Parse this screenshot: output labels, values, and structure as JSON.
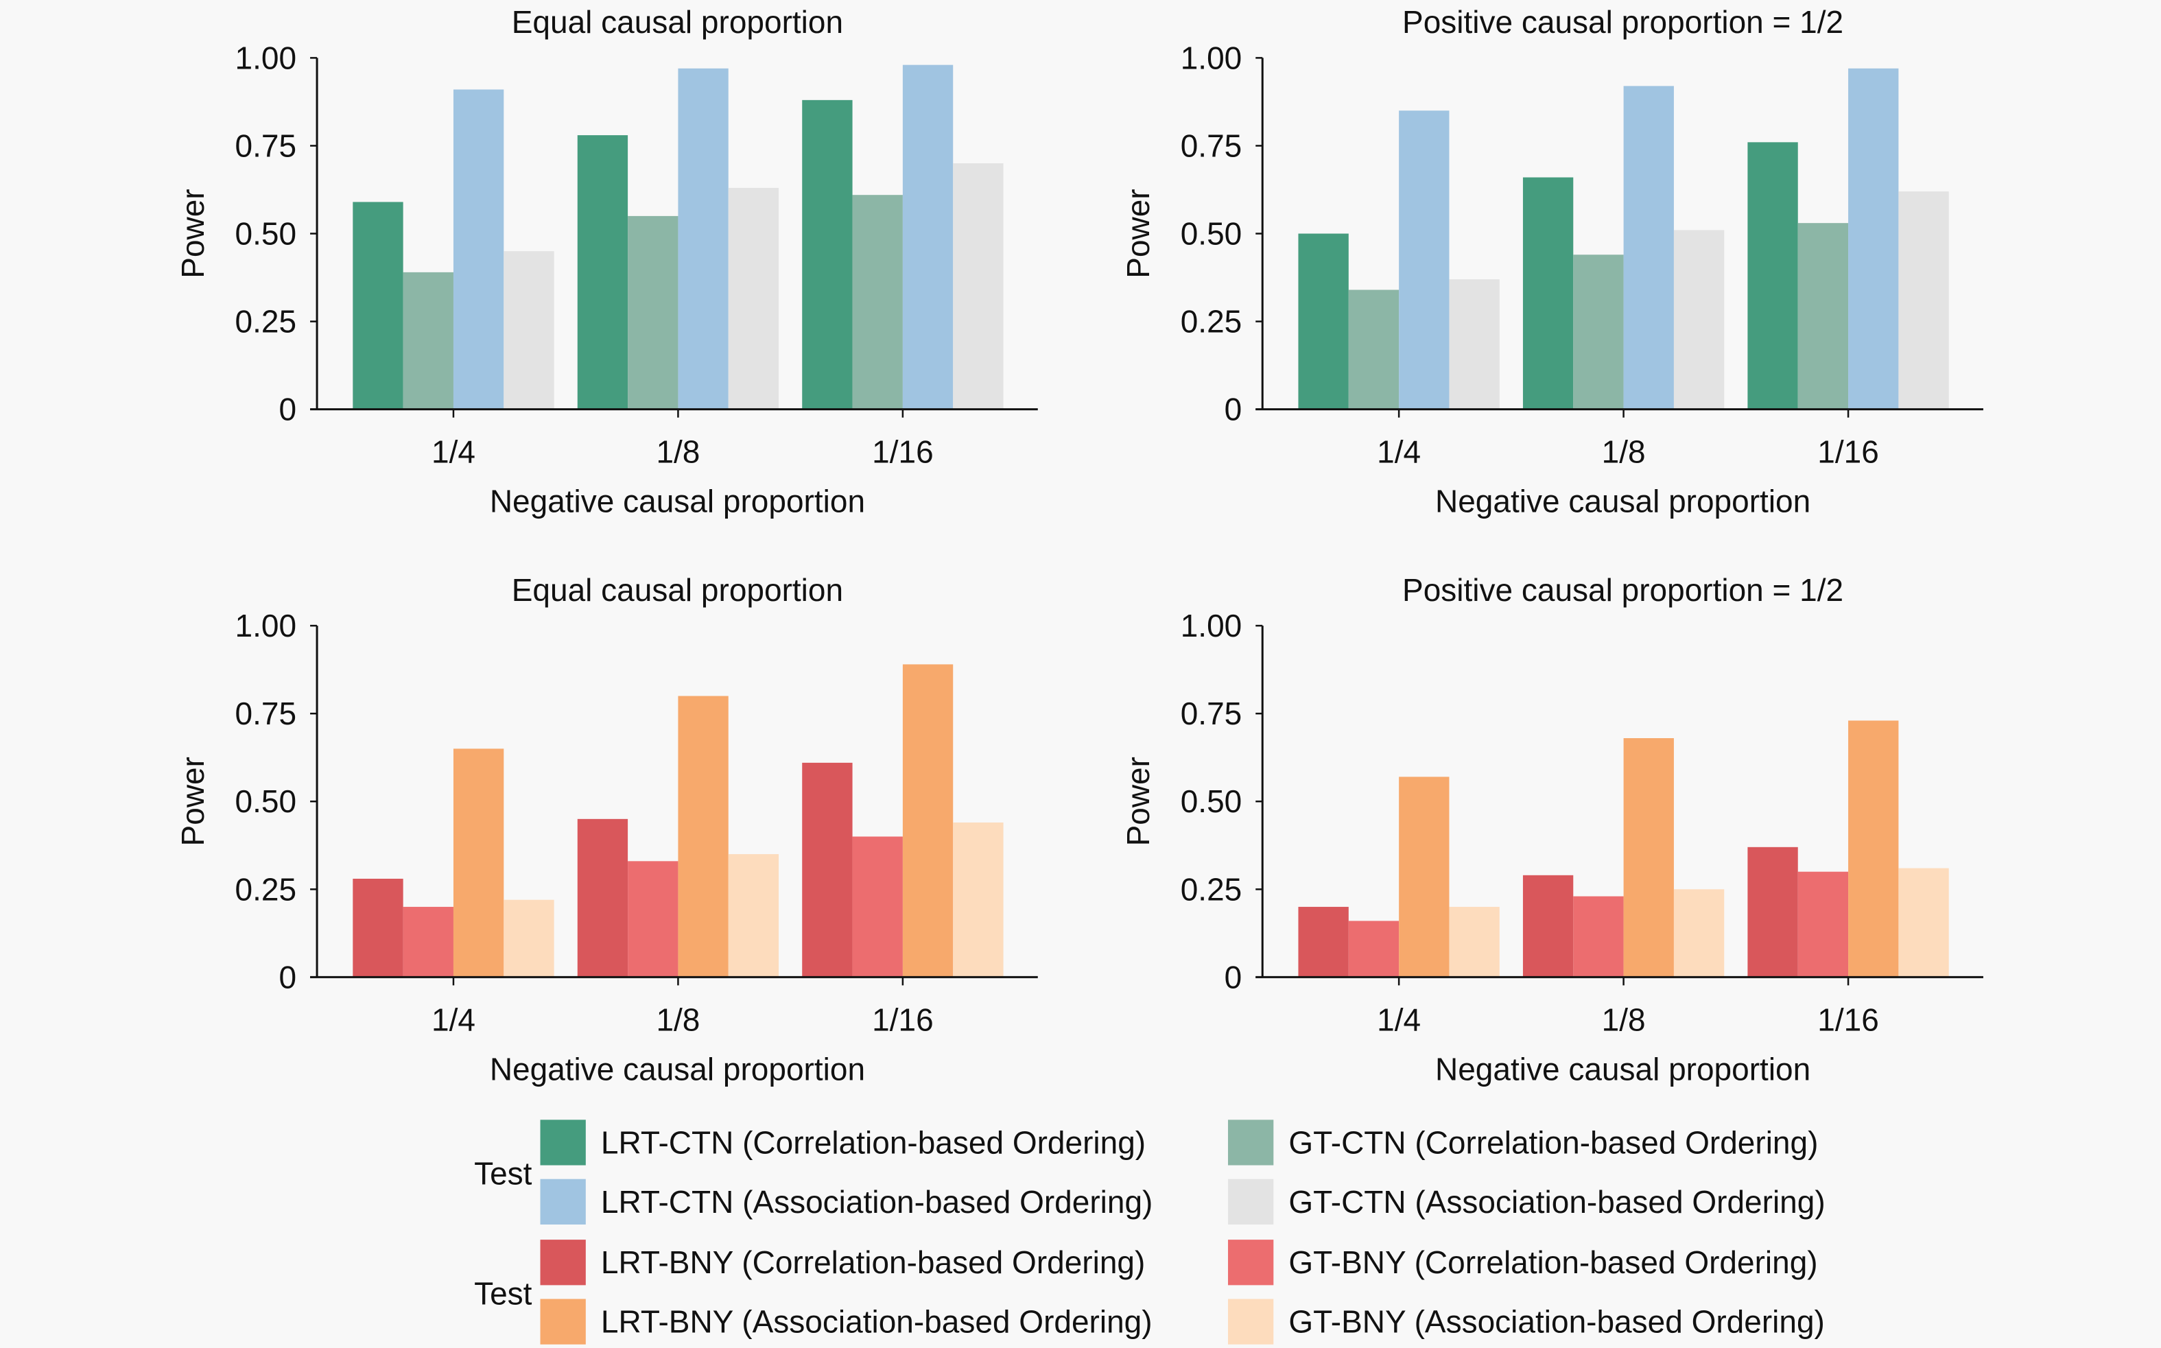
{
  "chart_data": [
    {
      "type": "bar",
      "panel": "top-left",
      "title": "Equal causal proportion",
      "xlabel": "Negative causal proportion",
      "ylabel": "Power",
      "ylim": [
        0,
        1
      ],
      "yticks": [
        "0",
        "0.25",
        "0.50",
        "0.75",
        "1.00"
      ],
      "categories": [
        "1/4",
        "1/8",
        "1/16"
      ],
      "series": [
        {
          "name": "LRT-CTN (Correlation-based Ordering)",
          "color": "#459c7e",
          "values": [
            0.59,
            0.78,
            0.88
          ]
        },
        {
          "name": "GT-CTN (Correlation-based Ordering)",
          "color": "#8cb6a6",
          "values": [
            0.39,
            0.55,
            0.61
          ]
        },
        {
          "name": "LRT-CTN (Association-based Ordering)",
          "color": "#a0c4e1",
          "values": [
            0.91,
            0.97,
            0.98
          ]
        },
        {
          "name": "GT-CTN (Association-based Ordering)",
          "color": "#e3e3e3",
          "values": [
            0.45,
            0.63,
            0.7
          ]
        }
      ]
    },
    {
      "type": "bar",
      "panel": "top-right",
      "title": "Positive causal proportion = 1/2",
      "xlabel": "Negative causal proportion",
      "ylabel": "Power",
      "ylim": [
        0,
        1
      ],
      "yticks": [
        "0",
        "0.25",
        "0.50",
        "0.75",
        "1.00"
      ],
      "categories": [
        "1/4",
        "1/8",
        "1/16"
      ],
      "series": [
        {
          "name": "LRT-CTN (Correlation-based Ordering)",
          "color": "#459c7e",
          "values": [
            0.5,
            0.66,
            0.76
          ]
        },
        {
          "name": "GT-CTN (Correlation-based Ordering)",
          "color": "#8cb6a6",
          "values": [
            0.34,
            0.44,
            0.53
          ]
        },
        {
          "name": "LRT-CTN (Association-based Ordering)",
          "color": "#a0c4e1",
          "values": [
            0.85,
            0.92,
            0.97
          ]
        },
        {
          "name": "GT-CTN (Association-based Ordering)",
          "color": "#e3e3e3",
          "values": [
            0.37,
            0.51,
            0.62
          ]
        }
      ]
    },
    {
      "type": "bar",
      "panel": "bottom-left",
      "title": "Equal causal proportion",
      "xlabel": "Negative causal proportion",
      "ylabel": "Power",
      "ylim": [
        0,
        1
      ],
      "yticks": [
        "0",
        "0.25",
        "0.50",
        "0.75",
        "1.00"
      ],
      "categories": [
        "1/4",
        "1/8",
        "1/16"
      ],
      "series": [
        {
          "name": "LRT-BNY (Correlation-based Ordering)",
          "color": "#d9575b",
          "values": [
            0.28,
            0.45,
            0.61
          ]
        },
        {
          "name": "GT-BNY (Correlation-based Ordering)",
          "color": "#ec6d6f",
          "values": [
            0.2,
            0.33,
            0.4
          ]
        },
        {
          "name": "LRT-BNY (Association-based Ordering)",
          "color": "#f7a96c",
          "values": [
            0.65,
            0.8,
            0.89
          ]
        },
        {
          "name": "GT-BNY (Association-based Ordering)",
          "color": "#fddcbd",
          "values": [
            0.22,
            0.35,
            0.44
          ]
        }
      ]
    },
    {
      "type": "bar",
      "panel": "bottom-right",
      "title": "Positive causal proportion = 1/2",
      "xlabel": "Negative causal proportion",
      "ylabel": "Power",
      "ylim": [
        0,
        1
      ],
      "yticks": [
        "0",
        "0.25",
        "0.50",
        "0.75",
        "1.00"
      ],
      "categories": [
        "1/4",
        "1/8",
        "1/16"
      ],
      "series": [
        {
          "name": "LRT-BNY (Correlation-based Ordering)",
          "color": "#d9575b",
          "values": [
            0.2,
            0.29,
            0.37
          ]
        },
        {
          "name": "GT-BNY (Correlation-based Ordering)",
          "color": "#ec6d6f",
          "values": [
            0.16,
            0.23,
            0.3
          ]
        },
        {
          "name": "LRT-BNY (Association-based Ordering)",
          "color": "#f7a96c",
          "values": [
            0.57,
            0.68,
            0.73
          ]
        },
        {
          "name": "GT-BNY (Association-based Ordering)",
          "color": "#fddcbd",
          "values": [
            0.2,
            0.25,
            0.31
          ]
        }
      ]
    }
  ],
  "legend": {
    "groups": [
      {
        "title": "Test",
        "rows": [
          [
            {
              "label": "LRT-CTN (Correlation-based Ordering)",
              "color": "#459c7e"
            },
            {
              "label": "GT-CTN (Correlation-based Ordering)",
              "color": "#8cb6a6"
            }
          ],
          [
            {
              "label": "LRT-CTN (Association-based Ordering)",
              "color": "#a0c4e1"
            },
            {
              "label": "GT-CTN (Association-based Ordering)",
              "color": "#e3e3e3"
            }
          ]
        ]
      },
      {
        "title": "Test",
        "rows": [
          [
            {
              "label": "LRT-BNY (Correlation-based Ordering)",
              "color": "#d9575b"
            },
            {
              "label": "GT-BNY (Correlation-based Ordering)",
              "color": "#ec6d6f"
            }
          ],
          [
            {
              "label": "LRT-BNY (Association-based Ordering)",
              "color": "#f7a96c"
            },
            {
              "label": "GT-BNY (Association-based Ordering)",
              "color": "#fddcbd"
            }
          ]
        ]
      }
    ]
  }
}
